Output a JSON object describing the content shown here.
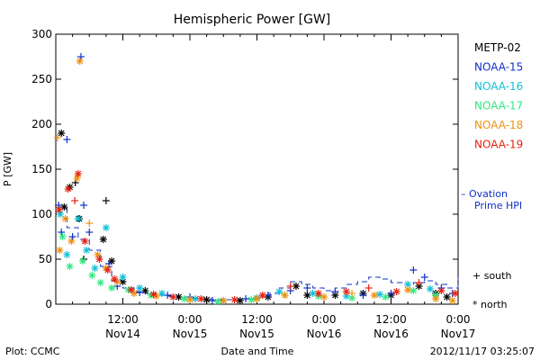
{
  "footer": {
    "plot_credit": "Plot: CCMC",
    "timestamp": "2012/11/17 03:25:07"
  },
  "chart_data": {
    "type": "scatter",
    "title": "Hemispheric Power [GW]",
    "ylabel": "P [GW]",
    "xlabel": "Date and Time",
    "ylim": [
      0,
      300
    ],
    "xlim_hours": [
      0,
      72
    ],
    "grid": false,
    "legend_placement": "right",
    "y_ticks": [
      0,
      50,
      100,
      150,
      200,
      250,
      300
    ],
    "x_ticks": [
      {
        "hour": 12,
        "line1": "12:00",
        "line2": "Nov14"
      },
      {
        "hour": 24,
        "line1": "0:00",
        "line2": "Nov15"
      },
      {
        "hour": 36,
        "line1": "12:00",
        "line2": "Nov15"
      },
      {
        "hour": 48,
        "line1": "0:00",
        "line2": "Nov16"
      },
      {
        "hour": 60,
        "line1": "12:00",
        "line2": "Nov16"
      },
      {
        "hour": 72,
        "line1": "0:00",
        "line2": "Nov17"
      }
    ],
    "symbol_legend": {
      "south": "+ south",
      "north": "* north"
    },
    "series": [
      {
        "name": "METP-02",
        "color": "#000000",
        "points": [
          [
            1,
            190,
            "n"
          ],
          [
            1.5,
            108,
            "n"
          ],
          [
            2.5,
            130,
            "n"
          ],
          [
            3.5,
            135,
            "s"
          ],
          [
            4.2,
            95,
            "n"
          ],
          [
            5,
            50,
            "s"
          ],
          [
            9,
            115,
            "s"
          ],
          [
            8.5,
            72,
            "n"
          ],
          [
            10,
            48,
            "n"
          ],
          [
            12,
            25,
            "n"
          ],
          [
            16,
            15,
            "n"
          ],
          [
            22,
            8,
            "n"
          ],
          [
            27,
            5,
            "n"
          ],
          [
            33,
            4,
            "n"
          ],
          [
            38,
            8,
            "n"
          ],
          [
            43,
            20,
            "n"
          ],
          [
            45,
            10,
            "n"
          ],
          [
            50,
            10,
            "n"
          ],
          [
            55,
            12,
            "n"
          ],
          [
            60,
            10,
            "n"
          ],
          [
            65,
            20,
            "n"
          ],
          [
            68,
            12,
            "n"
          ],
          [
            70,
            8,
            "n"
          ]
        ]
      },
      {
        "name": "NOAA-15",
        "color": "#1030c8",
        "points": [
          [
            0.5,
            110,
            "s"
          ],
          [
            1,
            80,
            "s"
          ],
          [
            2,
            183,
            "s"
          ],
          [
            3,
            75,
            "s"
          ],
          [
            4.5,
            275,
            "s"
          ],
          [
            5,
            110,
            "s"
          ],
          [
            6,
            80,
            "s"
          ],
          [
            9.5,
            45,
            "s"
          ],
          [
            11,
            20,
            "s"
          ],
          [
            15,
            13,
            "s"
          ],
          [
            20,
            10,
            "s"
          ],
          [
            24,
            8,
            "s"
          ],
          [
            28,
            4,
            "s"
          ],
          [
            34,
            6,
            "s"
          ],
          [
            38,
            10,
            "s"
          ],
          [
            42,
            15,
            "s"
          ],
          [
            45,
            18,
            "s"
          ],
          [
            50,
            14,
            "s"
          ],
          [
            55,
            10,
            "s"
          ],
          [
            60,
            12,
            "s"
          ],
          [
            64,
            38,
            "s"
          ],
          [
            66,
            30,
            "s"
          ],
          [
            69,
            18,
            "s"
          ],
          [
            71,
            12,
            "s"
          ]
        ]
      },
      {
        "name": "NOAA-16",
        "color": "#10c0d8",
        "points": [
          [
            0.8,
            100,
            "n"
          ],
          [
            2,
            55,
            "n"
          ],
          [
            4,
            95,
            "n"
          ],
          [
            5.5,
            60,
            "n"
          ],
          [
            7,
            40,
            "n"
          ],
          [
            9,
            85,
            "n"
          ],
          [
            12,
            30,
            "n"
          ],
          [
            15,
            18,
            "n"
          ],
          [
            19,
            12,
            "n"
          ],
          [
            25,
            6,
            "n"
          ],
          [
            30,
            4,
            "n"
          ],
          [
            36,
            7,
            "n"
          ],
          [
            40,
            14,
            "n"
          ],
          [
            46,
            12,
            "n"
          ],
          [
            52,
            9,
            "n"
          ],
          [
            58,
            11,
            "n"
          ],
          [
            63,
            22,
            "n"
          ],
          [
            67,
            17,
            "n"
          ]
        ]
      },
      {
        "name": "NOAA-17",
        "color": "#30e880",
        "points": [
          [
            1.2,
            75,
            "n"
          ],
          [
            2.5,
            42,
            "n"
          ],
          [
            4.8,
            48,
            "n"
          ],
          [
            6.5,
            32,
            "n"
          ],
          [
            8,
            24,
            "n"
          ],
          [
            10,
            18,
            "n"
          ],
          [
            13,
            16,
            "n"
          ],
          [
            17,
            10,
            "n"
          ],
          [
            23,
            6,
            "n"
          ],
          [
            29,
            3,
            "n"
          ],
          [
            35,
            5,
            "n"
          ],
          [
            41,
            10,
            "n"
          ],
          [
            47,
            9,
            "n"
          ],
          [
            53,
            7,
            "n"
          ],
          [
            59,
            8,
            "n"
          ],
          [
            64,
            15,
            "n"
          ],
          [
            68,
            10,
            "n"
          ]
        ]
      },
      {
        "name": "NOAA-18",
        "color": "#f09010",
        "points": [
          [
            0.3,
            185,
            "s"
          ],
          [
            0.7,
            60,
            "n"
          ],
          [
            1.7,
            95,
            "n"
          ],
          [
            2.8,
            70,
            "n"
          ],
          [
            3.8,
            140,
            "n"
          ],
          [
            4.3,
            270,
            "n"
          ],
          [
            6,
            90,
            "s"
          ],
          [
            7.5,
            55,
            "n"
          ],
          [
            9,
            40,
            "n"
          ],
          [
            11,
            25,
            "n"
          ],
          [
            14,
            12,
            "n"
          ],
          [
            18,
            9,
            "n"
          ],
          [
            24,
            5,
            "n"
          ],
          [
            30,
            4,
            "n"
          ],
          [
            36,
            6,
            "n"
          ],
          [
            41,
            10,
            "n"
          ],
          [
            48,
            8,
            "n"
          ],
          [
            53,
            12,
            "s"
          ],
          [
            57,
            10,
            "n"
          ],
          [
            63,
            16,
            "n"
          ],
          [
            68,
            6,
            "n"
          ],
          [
            71,
            4,
            "n"
          ]
        ]
      },
      {
        "name": "NOAA-19",
        "color": "#e82010",
        "points": [
          [
            0.6,
            105,
            "n"
          ],
          [
            2.2,
            128,
            "n"
          ],
          [
            3.4,
            115,
            "s"
          ],
          [
            4,
            145,
            "n"
          ],
          [
            5.2,
            70,
            "n"
          ],
          [
            7.8,
            50,
            "n"
          ],
          [
            9.3,
            38,
            "n"
          ],
          [
            10.5,
            28,
            "n"
          ],
          [
            13.5,
            16,
            "n"
          ],
          [
            17.5,
            11,
            "n"
          ],
          [
            21,
            8,
            "n"
          ],
          [
            26,
            6,
            "n"
          ],
          [
            32,
            5,
            "n"
          ],
          [
            37,
            10,
            "n"
          ],
          [
            42,
            20,
            "s"
          ],
          [
            47,
            12,
            "n"
          ],
          [
            52,
            14,
            "n"
          ],
          [
            56,
            18,
            "s"
          ],
          [
            61,
            14,
            "n"
          ],
          [
            65,
            24,
            "s"
          ],
          [
            69,
            15,
            "n"
          ],
          [
            71.5,
            12,
            "n"
          ]
        ]
      }
    ],
    "model": {
      "name": "- Ovation Prime HPI",
      "label_line1": "– Ovation",
      "label_line2": "Prime HPI",
      "color": "#1030c8",
      "style": "dash-step",
      "points": [
        [
          0.5,
          108
        ],
        [
          2,
          85
        ],
        [
          4,
          72
        ],
        [
          6,
          60
        ],
        [
          8,
          42
        ],
        [
          10,
          26
        ],
        [
          12,
          18
        ],
        [
          14,
          14
        ],
        [
          16,
          12
        ],
        [
          18,
          10
        ],
        [
          20,
          9
        ],
        [
          22,
          8
        ],
        [
          24,
          7
        ],
        [
          26,
          6
        ],
        [
          28,
          5
        ],
        [
          30,
          5
        ],
        [
          32,
          5
        ],
        [
          34,
          6
        ],
        [
          36,
          8
        ],
        [
          38,
          12
        ],
        [
          40,
          18
        ],
        [
          42,
          25
        ],
        [
          44,
          22
        ],
        [
          46,
          18
        ],
        [
          48,
          15
        ],
        [
          50,
          18
        ],
        [
          52,
          22
        ],
        [
          54,
          25
        ],
        [
          56,
          30
        ],
        [
          58,
          28
        ],
        [
          60,
          24
        ],
        [
          62,
          22
        ],
        [
          64,
          24
        ],
        [
          66,
          26
        ],
        [
          68,
          22
        ],
        [
          70,
          18
        ],
        [
          72,
          30
        ]
      ]
    }
  }
}
